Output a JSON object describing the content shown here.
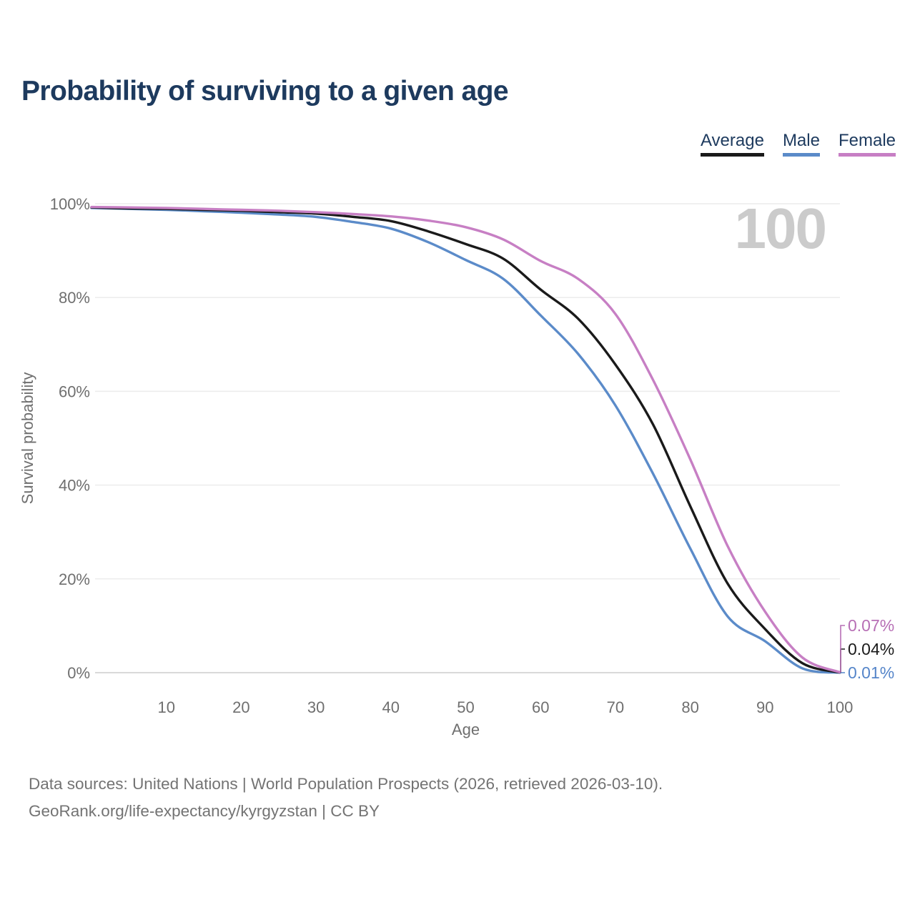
{
  "title": "Probability of surviving to a given age",
  "legend": {
    "items": [
      {
        "label": "Average",
        "color": "#1a1a1a"
      },
      {
        "label": "Male",
        "color": "#5b8bc9"
      },
      {
        "label": "Female",
        "color": "#c77fc4"
      }
    ]
  },
  "watermark": "100",
  "footer": {
    "line1": "Data sources: United Nations | World Population Prospects (2026, retrieved 2026-03-10).",
    "line2": "GeoRank.org/life-expectancy/kyrgyzstan | CC BY"
  },
  "chart_data": {
    "type": "line",
    "title": "Probability of surviving to a given age",
    "xlabel": "Age",
    "ylabel": "Survival probability",
    "xlim": [
      0,
      100
    ],
    "ylim": [
      0,
      100
    ],
    "grid": "horizontal",
    "legend_position": "top-right",
    "x_ticks": [
      {
        "v": 10,
        "label": "10"
      },
      {
        "v": 20,
        "label": "20"
      },
      {
        "v": 30,
        "label": "30"
      },
      {
        "v": 40,
        "label": "40"
      },
      {
        "v": 50,
        "label": "50"
      },
      {
        "v": 60,
        "label": "60"
      },
      {
        "v": 70,
        "label": "70"
      },
      {
        "v": 80,
        "label": "80"
      },
      {
        "v": 90,
        "label": "90"
      },
      {
        "v": 100,
        "label": "100"
      }
    ],
    "y_ticks": [
      {
        "v": 0,
        "label": "0%"
      },
      {
        "v": 20,
        "label": "20%"
      },
      {
        "v": 40,
        "label": "40%"
      },
      {
        "v": 60,
        "label": "60%"
      },
      {
        "v": 80,
        "label": "80%"
      },
      {
        "v": 100,
        "label": "100%"
      }
    ],
    "ages": [
      0,
      5,
      10,
      15,
      20,
      25,
      30,
      35,
      40,
      45,
      50,
      55,
      60,
      65,
      70,
      75,
      80,
      85,
      90,
      95,
      100
    ],
    "series": [
      {
        "name": "Average",
        "color": "#1a1a1a",
        "end_label": "0.04%",
        "end_label_color": "#1a1a1a",
        "values": [
          99.2,
          99.0,
          98.9,
          98.7,
          98.5,
          98.2,
          97.9,
          97.2,
          96.3,
          94.1,
          91.4,
          88.3,
          81.7,
          75.5,
          65.7,
          53.0,
          35.5,
          19.0,
          9.3,
          2.0,
          0.04
        ]
      },
      {
        "name": "Male",
        "color": "#5b8bc9",
        "end_label": "0.01%",
        "end_label_color": "#5585c9",
        "values": [
          99.1,
          98.9,
          98.7,
          98.4,
          98.1,
          97.7,
          97.2,
          96.1,
          94.7,
          91.8,
          88.0,
          84.0,
          76.2,
          68.0,
          57.0,
          42.5,
          26.5,
          12.0,
          6.7,
          0.9,
          0.01
        ]
      },
      {
        "name": "Female",
        "color": "#c77fc4",
        "end_label": "0.07%",
        "end_label_color": "#b76fb5",
        "values": [
          99.3,
          99.2,
          99.1,
          98.9,
          98.7,
          98.5,
          98.2,
          97.8,
          97.3,
          96.4,
          95.0,
          92.4,
          87.8,
          84.0,
          76.5,
          62.5,
          45.5,
          27.0,
          13.0,
          3.2,
          0.07
        ]
      }
    ]
  }
}
